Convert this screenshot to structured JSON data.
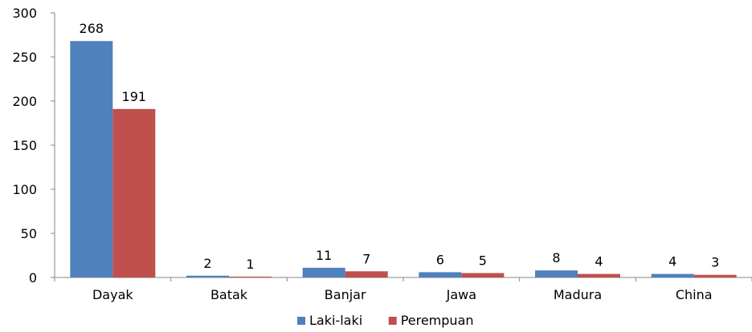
{
  "chart_data": {
    "type": "bar",
    "title": "",
    "xlabel": "",
    "ylabel": "",
    "categories": [
      "Dayak",
      "Batak",
      "Banjar",
      "Jawa",
      "Madura",
      "China"
    ],
    "series": [
      {
        "name": "Laki-laki",
        "values": [
          268,
          2,
          11,
          6,
          8,
          4
        ],
        "color": "#4F81BD"
      },
      {
        "name": "Perempuan",
        "values": [
          191,
          1,
          7,
          5,
          4,
          3
        ],
        "color": "#C0504D"
      }
    ],
    "ylim": [
      0,
      300
    ],
    "yticks": [
      0,
      50,
      100,
      150,
      200,
      250,
      300
    ],
    "grid": false,
    "legend_position": "bottom"
  }
}
